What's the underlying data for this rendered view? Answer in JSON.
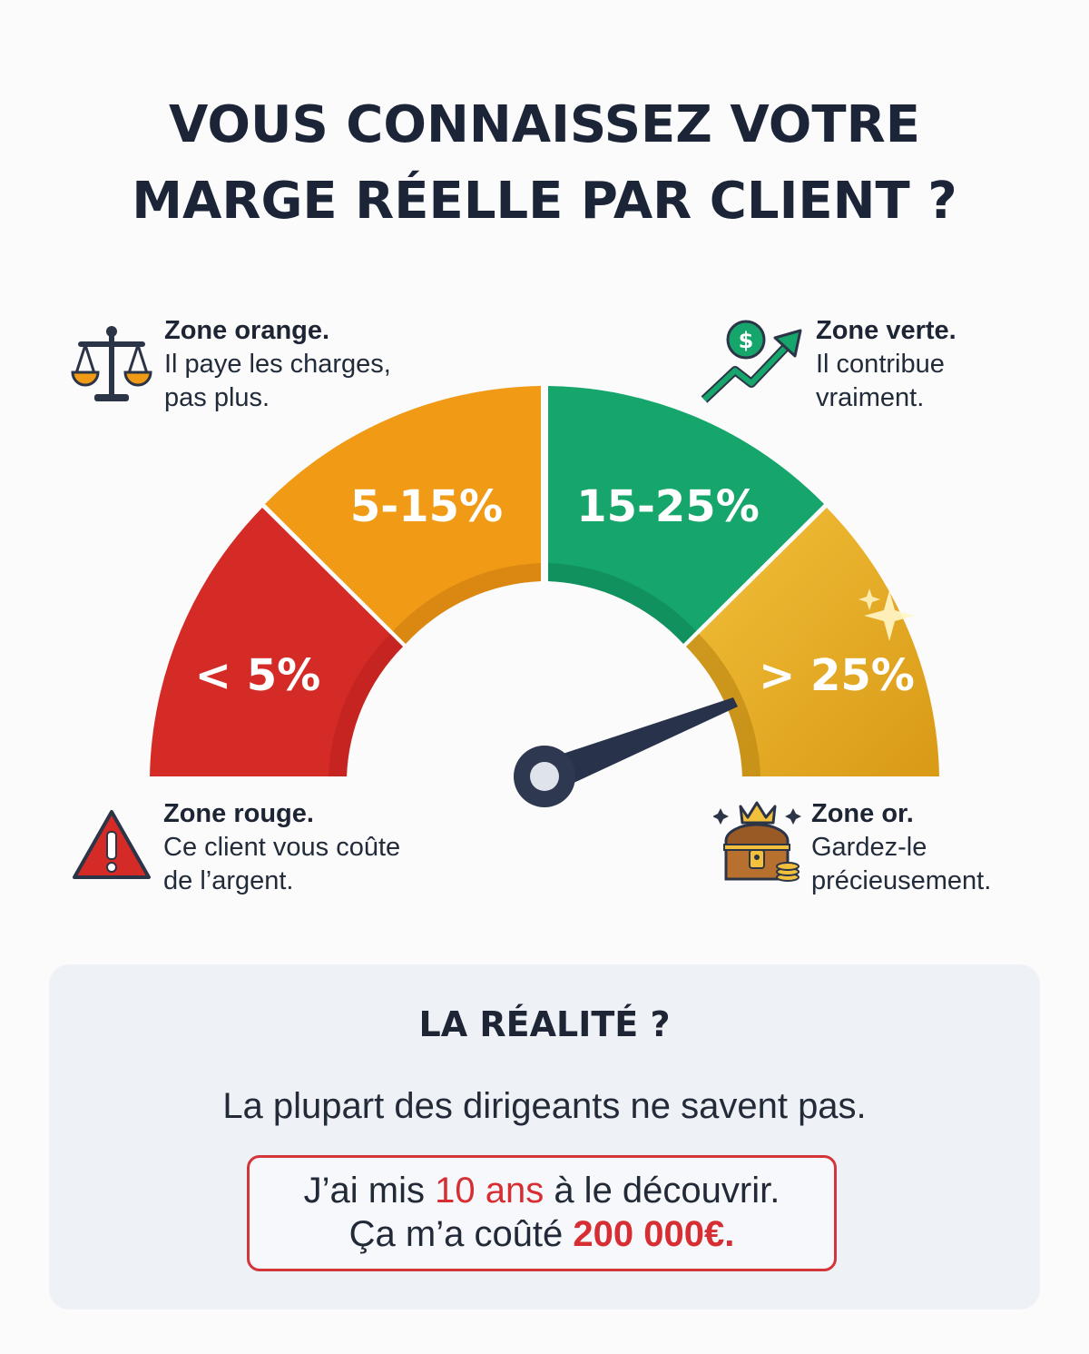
{
  "title": {
    "line1": "VOUS CONNAISSEZ VOTRE",
    "line2": "MARGE RÉELLE PAR CLIENT ?"
  },
  "gauge": {
    "segments": [
      {
        "label": "< 5%",
        "color": "#d52b27"
      },
      {
        "label": "5-15%",
        "color": "#f09a16"
      },
      {
        "label": "15-25%",
        "color": "#16a66c"
      },
      {
        "label": "> 25%",
        "color": "#e6ad21"
      }
    ],
    "needle_color": "#28324a"
  },
  "zones": {
    "orange": {
      "icon": "scales-icon",
      "title": "Zone orange.",
      "line1": "Il paye les charges,",
      "line2": "pas plus."
    },
    "green": {
      "icon": "growth-dollar-icon",
      "title": "Zone verte.",
      "line1": "Il contribue",
      "line2": "vraiment."
    },
    "red": {
      "icon": "warning-icon",
      "title": "Zone rouge.",
      "line1": "Ce client vous coûte",
      "line2": "de l’argent."
    },
    "gold": {
      "icon": "treasure-chest-icon",
      "title": "Zone or.",
      "line1": "Gardez-le",
      "line2": "précieusement."
    }
  },
  "reality": {
    "title": "LA RÉALITÉ ?",
    "subtitle": "La plupart des dirigeants ne savent pas.",
    "callout": {
      "l1_pre": "J’ai mis ",
      "l1_highlight": "10 ans",
      "l1_post": " à le découvrir.",
      "l2_pre": "Ça m’a coûté ",
      "l2_highlight": "200 000€."
    }
  },
  "colors": {
    "title": "#1c2538",
    "red": "#d52b27",
    "orange": "#f09a16",
    "green": "#16a66c",
    "gold": "#e6ad21",
    "accent_red": "#d62e32"
  }
}
